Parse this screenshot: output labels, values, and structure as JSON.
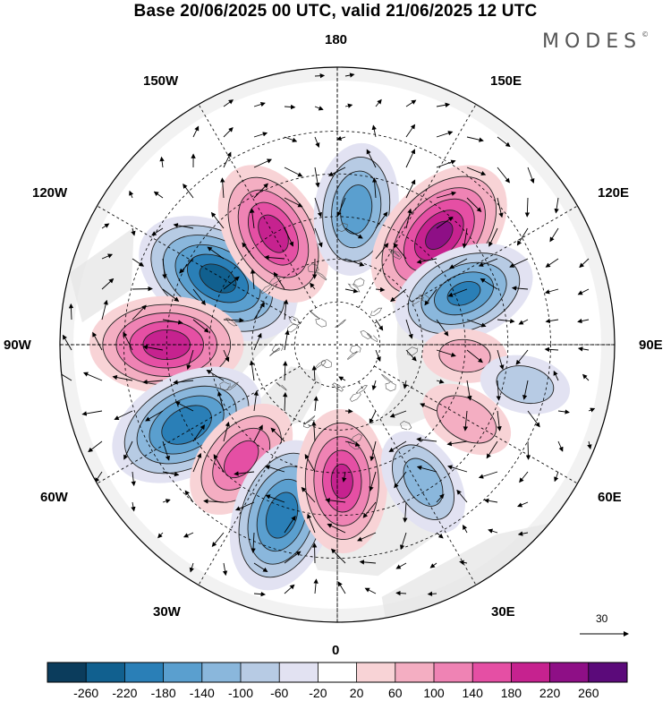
{
  "title": "Base 20/06/2025 00 UTC, valid 21/06/2025 12 UTC",
  "brand": "MODES",
  "brand_mark": "©",
  "longitude_labels": {
    "lon_180": "180",
    "lon_150e": "150E",
    "lon_120e": "120E",
    "lon_90e": "90E",
    "lon_60e": "60E",
    "lon_30e": "30E",
    "lon_0": "0",
    "lon_30w": "30W",
    "lon_60w": "60W",
    "lon_90w": "90W",
    "lon_120w": "120W",
    "lon_150w": "150W"
  },
  "reference_vector_label": "30",
  "colorbar": {
    "ticks": [
      "-260",
      "-220",
      "-180",
      "-140",
      "-100",
      "-60",
      "-20",
      "20",
      "60",
      "100",
      "140",
      "180",
      "220",
      "260"
    ],
    "colors": [
      "#0b3c5c",
      "#11608f",
      "#2a7fb7",
      "#5a9fcf",
      "#8ab7dc",
      "#b7cbe4",
      "#e2e2f2",
      "#ffffff",
      "#f8d3d6",
      "#f4aec2",
      "#ef83b4",
      "#e54fa4",
      "#c6228f",
      "#8e0f86",
      "#5b0a7a"
    ]
  },
  "anomaly_centers": [
    {
      "sign": "negative",
      "value": -230,
      "lat": 58,
      "lon": -119
    },
    {
      "sign": "positive",
      "value": 190,
      "lat": 60,
      "lon": -150
    },
    {
      "sign": "negative",
      "value": -160,
      "lat": 58,
      "lon": 172
    },
    {
      "sign": "positive",
      "value": 220,
      "lat": 55,
      "lon": 137
    },
    {
      "sign": "negative",
      "value": -180,
      "lat": 58,
      "lon": 112
    },
    {
      "sign": "positive",
      "value": 200,
      "lat": 50,
      "lon": -90
    },
    {
      "sign": "negative",
      "value": -210,
      "lat": 50,
      "lon": -62
    },
    {
      "sign": "positive",
      "value": 150,
      "lat": 55,
      "lon": -40
    },
    {
      "sign": "negative",
      "value": -200,
      "lat": 48,
      "lon": -18
    },
    {
      "sign": "positive",
      "value": 180,
      "lat": 58,
      "lon": 2
    },
    {
      "sign": "negative",
      "value": -120,
      "lat": 52,
      "lon": 32
    },
    {
      "sign": "positive",
      "value": 90,
      "lat": 55,
      "lon": 60
    },
    {
      "sign": "positive",
      "value": 70,
      "lat": 60,
      "lon": 85
    },
    {
      "sign": "negative",
      "value": -80,
      "lat": 45,
      "lon": 78
    }
  ]
}
